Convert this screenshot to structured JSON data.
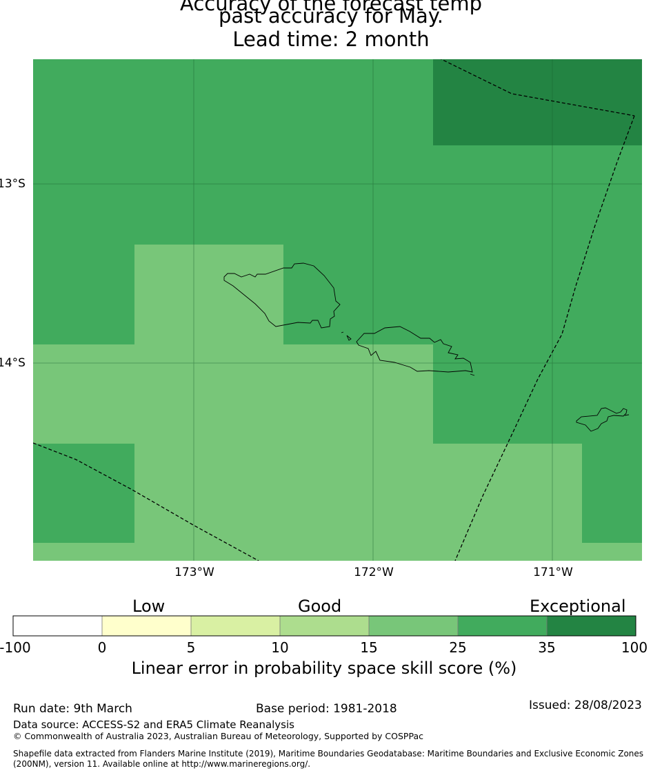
{
  "title": {
    "line1": "Accuracy of the forecast temp",
    "line2": "past accuracy for May.",
    "line3": "Lead time: 2 month"
  },
  "map": {
    "latitude_labels": [
      "13°S",
      "14°S"
    ],
    "longitude_labels": [
      "173°W",
      "172°W",
      "171°W"
    ],
    "colors": {
      "class_15_25": "#78c679",
      "class_25_35": "#41ab5d",
      "class_35_100": "#238443"
    }
  },
  "colorbar": {
    "categories": [
      "Low",
      "Good",
      "Exceptional"
    ],
    "ticks": [
      "-100",
      "0",
      "5",
      "10",
      "15",
      "25",
      "35",
      "100"
    ],
    "colors": [
      "#ffffff",
      "#ffffcc",
      "#d9f0a3",
      "#addd8e",
      "#78c679",
      "#41ab5d",
      "#238443"
    ],
    "label": "Linear error in probability space skill score (%)"
  },
  "footer": {
    "run_date": "Run date: 9th March",
    "base_period": "Base period: 1981-2018",
    "issued": "Issued: 28/08/2023",
    "data_source": "Data source: ACCESS-S2 and ERA5 Climate Reanalysis",
    "copyright": "© Commonwealth of Australia 2023, Australian Bureau of Meteorology, Supported by COSPPac",
    "shapefile_line1": "Shapefile data extracted from Flanders Marine Institute (2019), Maritime Boundaries Geodatabase: Maritime Boundaries and Exclusive Economic Zones",
    "shapefile_line2": "(200NM), version 11. Available online at http://www.marineregions.org/."
  }
}
